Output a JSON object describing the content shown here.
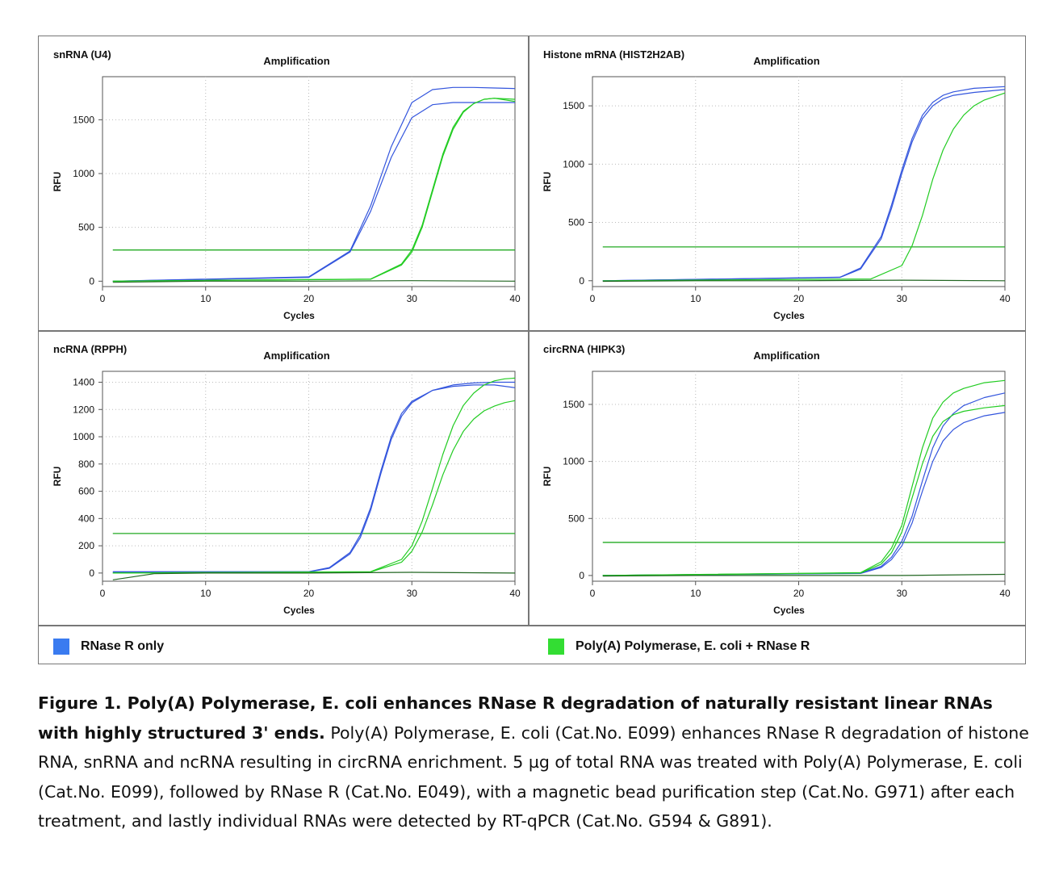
{
  "chart_data": [
    {
      "type": "line",
      "panel_label": "snRNA (U4)",
      "title": "Amplification",
      "xlabel": "Cycles",
      "ylabel": "RFU",
      "xlim": [
        0,
        40
      ],
      "ylim": [
        -50,
        1900
      ],
      "xticks": [
        0,
        10,
        20,
        30,
        40
      ],
      "yticks": [
        0,
        500,
        1000,
        1500
      ],
      "grid": true,
      "threshold": 290,
      "series": [
        {
          "color": "#3355dd",
          "x": [
            1,
            20,
            24,
            26,
            28,
            30,
            32,
            34,
            36,
            38,
            40
          ],
          "y": [
            0,
            40,
            280,
            700,
            1250,
            1660,
            1780,
            1800,
            1800,
            1795,
            1790
          ]
        },
        {
          "color": "#3355dd",
          "x": [
            1,
            20,
            24,
            26,
            28,
            30,
            32,
            34,
            36,
            38,
            40
          ],
          "y": [
            0,
            35,
            270,
            650,
            1150,
            1520,
            1640,
            1660,
            1660,
            1660,
            1660
          ]
        },
        {
          "color": "#22cc22",
          "x": [
            1,
            26,
            29,
            30,
            31,
            32,
            33,
            34,
            35,
            36,
            37,
            38,
            40
          ],
          "y": [
            0,
            20,
            160,
            290,
            520,
            850,
            1180,
            1430,
            1580,
            1650,
            1690,
            1700,
            1690
          ]
        },
        {
          "color": "#22cc22",
          "x": [
            1,
            26,
            29,
            30,
            31,
            32,
            33,
            34,
            35,
            36,
            37,
            38,
            40
          ],
          "y": [
            0,
            18,
            150,
            270,
            500,
            830,
            1160,
            1410,
            1570,
            1650,
            1690,
            1700,
            1670
          ]
        },
        {
          "color": "#226622",
          "x": [
            1,
            10,
            20,
            30,
            40
          ],
          "y": [
            -10,
            0,
            0,
            5,
            0
          ]
        }
      ]
    },
    {
      "type": "line",
      "panel_label": "Histone mRNA (HIST2H2AB)",
      "title": "Amplification",
      "xlabel": "Cycles",
      "ylabel": "RFU",
      "xlim": [
        0,
        40
      ],
      "ylim": [
        -50,
        1750
      ],
      "xticks": [
        0,
        10,
        20,
        30,
        40
      ],
      "yticks": [
        0,
        500,
        1000,
        1500
      ],
      "grid": true,
      "threshold": 290,
      "series": [
        {
          "color": "#3355dd",
          "x": [
            1,
            24,
            26,
            28,
            29,
            30,
            31,
            32,
            33,
            34,
            35,
            37,
            40
          ],
          "y": [
            0,
            30,
            110,
            380,
            650,
            950,
            1220,
            1420,
            1530,
            1590,
            1620,
            1650,
            1665
          ]
        },
        {
          "color": "#3355dd",
          "x": [
            1,
            24,
            26,
            28,
            29,
            30,
            31,
            32,
            33,
            34,
            35,
            37,
            40
          ],
          "y": [
            0,
            28,
            100,
            360,
            620,
            920,
            1190,
            1390,
            1500,
            1560,
            1590,
            1615,
            1640
          ]
        },
        {
          "color": "#22cc22",
          "x": [
            1,
            27,
            30,
            31,
            32,
            33,
            34,
            35,
            36,
            37,
            38,
            40
          ],
          "y": [
            0,
            15,
            130,
            300,
            560,
            870,
            1120,
            1300,
            1420,
            1500,
            1550,
            1610
          ]
        },
        {
          "color": "#226622",
          "x": [
            1,
            10,
            20,
            30,
            40
          ],
          "y": [
            -5,
            0,
            0,
            5,
            0
          ]
        }
      ]
    },
    {
      "type": "line",
      "panel_label": "ncRNA (RPPH)",
      "title": "Amplification",
      "xlabel": "Cycles",
      "ylabel": "RFU",
      "xlim": [
        0,
        40
      ],
      "ylim": [
        -60,
        1480
      ],
      "xticks": [
        0,
        10,
        20,
        30,
        40
      ],
      "yticks": [
        0,
        200,
        400,
        600,
        800,
        1000,
        1200,
        1400
      ],
      "grid": true,
      "threshold": 290,
      "series": [
        {
          "color": "#3355dd",
          "x": [
            1,
            20,
            22,
            24,
            25,
            26,
            27,
            28,
            29,
            30,
            32,
            34,
            36,
            38,
            40
          ],
          "y": [
            10,
            10,
            40,
            150,
            280,
            480,
            750,
            1000,
            1170,
            1260,
            1340,
            1370,
            1380,
            1380,
            1360
          ]
        },
        {
          "color": "#3355dd",
          "x": [
            1,
            20,
            22,
            24,
            25,
            26,
            27,
            28,
            29,
            30,
            32,
            34,
            36,
            38,
            40
          ],
          "y": [
            5,
            8,
            35,
            140,
            260,
            460,
            730,
            980,
            1150,
            1250,
            1340,
            1380,
            1395,
            1400,
            1400
          ]
        },
        {
          "color": "#22cc22",
          "x": [
            1,
            26,
            29,
            30,
            31,
            32,
            33,
            34,
            35,
            36,
            37,
            38,
            39,
            40
          ],
          "y": [
            0,
            10,
            100,
            200,
            380,
            620,
            870,
            1080,
            1230,
            1320,
            1380,
            1410,
            1425,
            1430
          ]
        },
        {
          "color": "#22cc22",
          "x": [
            1,
            26,
            29,
            30,
            31,
            32,
            33,
            34,
            35,
            36,
            37,
            38,
            39,
            40
          ],
          "y": [
            0,
            8,
            80,
            160,
            300,
            500,
            720,
            900,
            1040,
            1130,
            1190,
            1225,
            1250,
            1265
          ]
        },
        {
          "color": "#226622",
          "x": [
            1,
            5,
            10,
            20,
            30,
            40
          ],
          "y": [
            -50,
            -5,
            0,
            0,
            5,
            0
          ]
        }
      ]
    },
    {
      "type": "line",
      "panel_label": "circRNA (HIPK3)",
      "title": "Amplification",
      "xlabel": "Cycles",
      "ylabel": "RFU",
      "xlim": [
        0,
        40
      ],
      "ylim": [
        -50,
        1790
      ],
      "xticks": [
        0,
        10,
        20,
        30,
        40
      ],
      "yticks": [
        0,
        500,
        1000,
        1500
      ],
      "grid": true,
      "threshold": 290,
      "series": [
        {
          "color": "#3355dd",
          "x": [
            1,
            26,
            28,
            29,
            30,
            31,
            32,
            33,
            34,
            35,
            36,
            38,
            40
          ],
          "y": [
            0,
            20,
            80,
            160,
            300,
            520,
            830,
            1120,
            1310,
            1420,
            1490,
            1560,
            1600
          ]
        },
        {
          "color": "#3355dd",
          "x": [
            1,
            26,
            28,
            29,
            30,
            31,
            32,
            33,
            34,
            35,
            36,
            38,
            40
          ],
          "y": [
            0,
            18,
            70,
            140,
            260,
            460,
            740,
            1000,
            1180,
            1280,
            1340,
            1400,
            1430
          ]
        },
        {
          "color": "#22cc22",
          "x": [
            1,
            26,
            28,
            29,
            30,
            31,
            32,
            33,
            34,
            35,
            36,
            38,
            40
          ],
          "y": [
            0,
            25,
            120,
            240,
            440,
            780,
            1120,
            1380,
            1520,
            1600,
            1640,
            1690,
            1710
          ]
        },
        {
          "color": "#22cc22",
          "x": [
            1,
            26,
            28,
            29,
            30,
            31,
            32,
            33,
            34,
            35,
            36,
            38,
            40
          ],
          "y": [
            0,
            22,
            100,
            200,
            380,
            680,
            980,
            1220,
            1350,
            1410,
            1440,
            1470,
            1490
          ]
        },
        {
          "color": "#226622",
          "x": [
            1,
            10,
            20,
            30,
            40
          ],
          "y": [
            -5,
            0,
            0,
            0,
            10
          ]
        }
      ]
    }
  ],
  "legend": [
    {
      "label": "RNase R only",
      "color": "#3a7bf0"
    },
    {
      "label": "Poly(A) Polymerase, E. coli + RNase R",
      "color": "#33dd33"
    }
  ],
  "caption": {
    "bold": "Figure 1. Poly(A) Polymerase, E. coli enhances RNase R degradation of naturally resistant linear RNAs with highly structured 3' ends.",
    "text": "Poly(A) Polymerase, E. coli (Cat.No. E099) enhances RNase R degradation of histone RNA, snRNA and ncRNA resulting in circRNA enrichment. 5 µg of total RNA was treated with Poly(A) Polymerase, E. coli (Cat.No. E099), followed by RNase R (Cat.No. E049), with a magnetic bead purification step (Cat.No. G971) after each treatment, and lastly individual RNAs were detected by RT-qPCR (Cat.No. G594 & G891)."
  },
  "colors": {
    "threshold": "#22aa22",
    "grid": "#bbbbbb",
    "frame": "#777777"
  }
}
